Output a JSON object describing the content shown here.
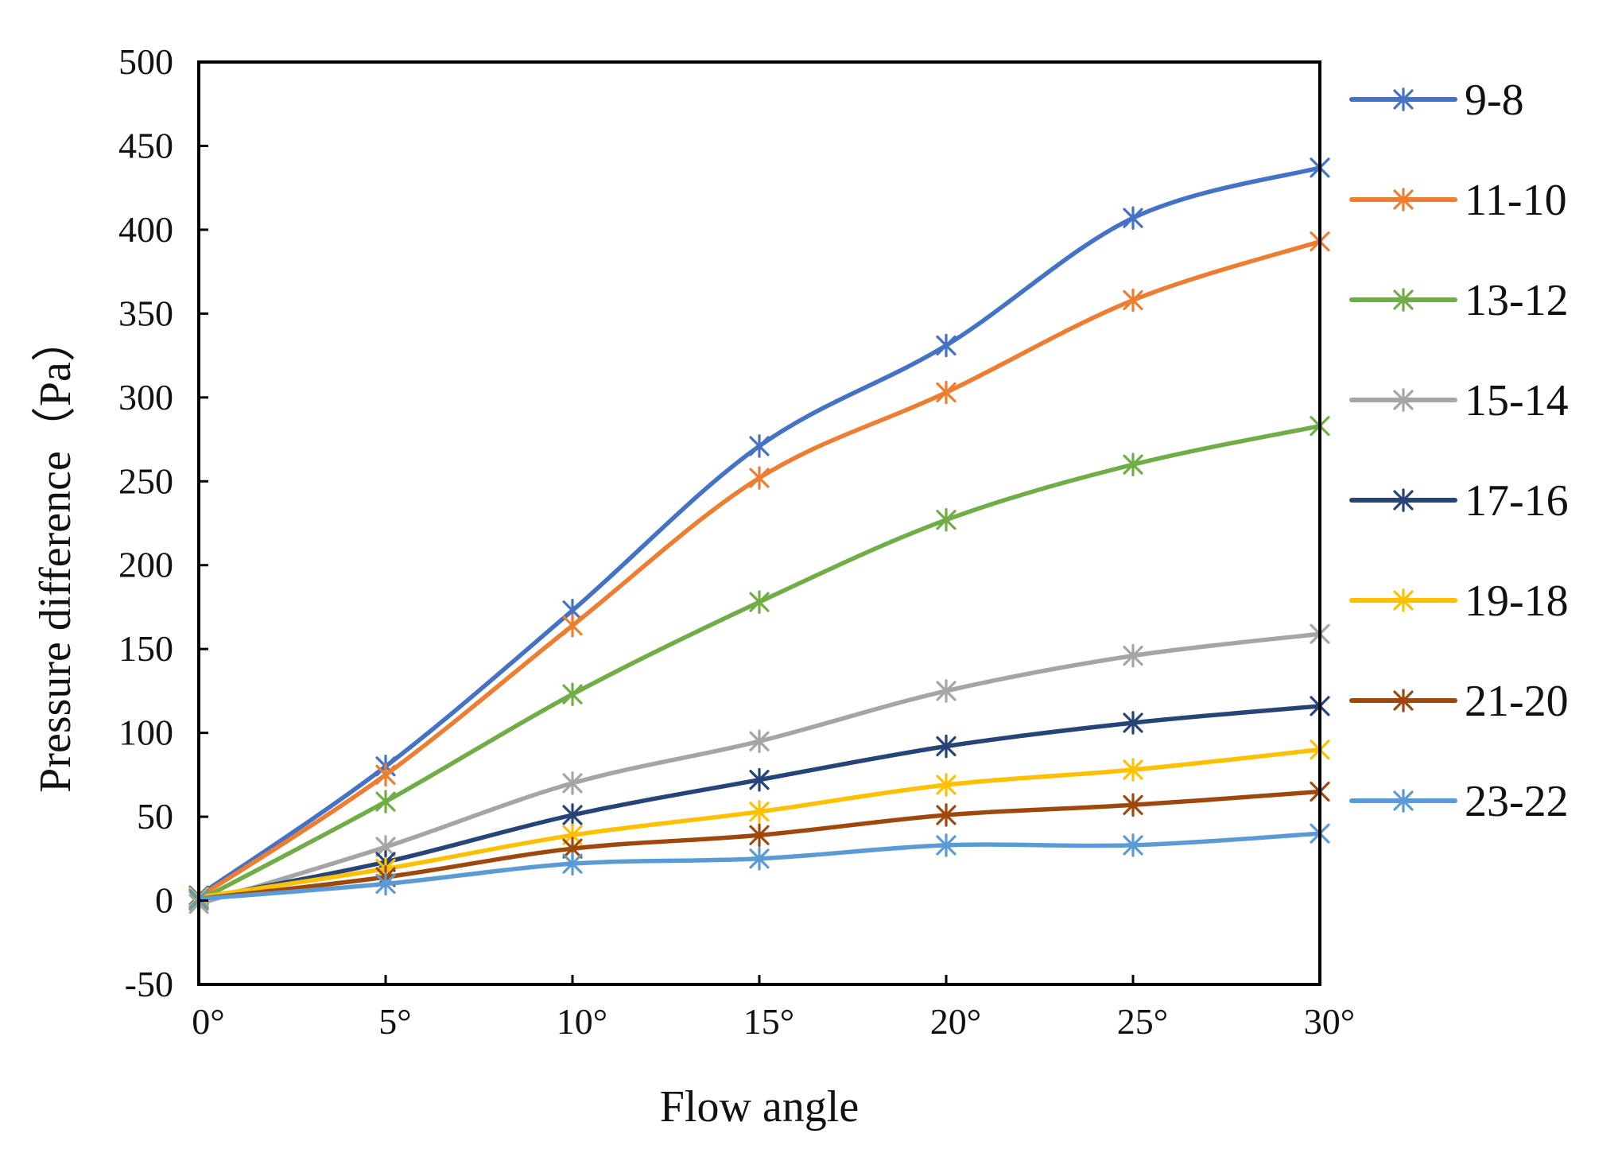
{
  "chart_data": {
    "type": "line",
    "title": "",
    "xlabel": "Flow angle",
    "ylabel": "Pressure difference（Pa）",
    "x": [
      0,
      5,
      10,
      15,
      20,
      25,
      30
    ],
    "categories": [
      "0°",
      "5°",
      "10°",
      "15°",
      "20°",
      "25°",
      "30°"
    ],
    "xlim": [
      0,
      30
    ],
    "ylim": [
      -50,
      500
    ],
    "yticks": [
      -50,
      0,
      50,
      100,
      150,
      200,
      250,
      300,
      350,
      400,
      450,
      500
    ],
    "grid": false,
    "legend_position": "right",
    "marker": "asterisk",
    "smooth": true,
    "series": [
      {
        "name": "9-8",
        "color": "#4472C4",
        "values": [
          3,
          80,
          173,
          271,
          331,
          407,
          437
        ]
      },
      {
        "name": "11-10",
        "color": "#ED7D31",
        "values": [
          2,
          75,
          164,
          252,
          303,
          358,
          393
        ]
      },
      {
        "name": "13-12",
        "color": "#70AD47",
        "values": [
          0,
          59,
          123,
          178,
          227,
          260,
          283
        ]
      },
      {
        "name": "15-14",
        "color": "#A5A5A5",
        "values": [
          -2,
          32,
          70,
          95,
          125,
          146,
          159
        ]
      },
      {
        "name": "17-16",
        "color": "#264478",
        "values": [
          1,
          23,
          51,
          72,
          92,
          106,
          116
        ]
      },
      {
        "name": "19-18",
        "color": "#FFC000",
        "values": [
          2,
          19,
          39,
          53,
          69,
          78,
          90
        ]
      },
      {
        "name": "21-20",
        "color": "#9E480E",
        "values": [
          1,
          14,
          31,
          39,
          51,
          57,
          65
        ]
      },
      {
        "name": "23-22",
        "color": "#5B9BD5",
        "values": [
          1,
          10,
          22,
          25,
          33,
          33,
          40
        ]
      }
    ]
  }
}
